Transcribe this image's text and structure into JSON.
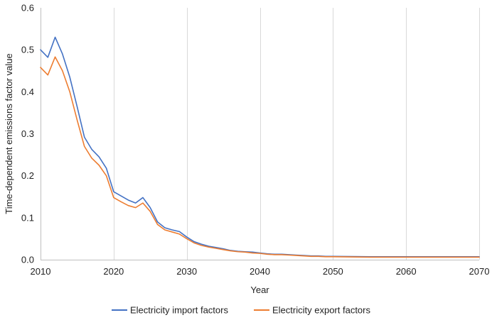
{
  "chart_data": {
    "type": "line",
    "title": "",
    "xlabel": "Year",
    "ylabel": "Time-dependent emissions factor value",
    "xlim": [
      2010,
      2070
    ],
    "ylim": [
      0,
      0.6
    ],
    "x_ticks": [
      2010,
      2020,
      2030,
      2040,
      2050,
      2060,
      2070
    ],
    "x_tick_labels": [
      "2010",
      "2020",
      "2030",
      "2040",
      "2050",
      "2060",
      "2070"
    ],
    "y_ticks": [
      0,
      0.1,
      0.2,
      0.3,
      0.4,
      0.5,
      0.6
    ],
    "y_tick_labels": [
      "0.0",
      "0.1",
      "0.2",
      "0.3",
      "0.4",
      "0.5",
      "0.6"
    ],
    "grid": "vertical",
    "legend_position": "bottom",
    "x": [
      2010,
      2011,
      2012,
      2013,
      2014,
      2015,
      2016,
      2017,
      2018,
      2019,
      2020,
      2021,
      2022,
      2023,
      2024,
      2025,
      2026,
      2027,
      2028,
      2029,
      2030,
      2031,
      2032,
      2033,
      2034,
      2035,
      2036,
      2037,
      2038,
      2039,
      2040,
      2041,
      2042,
      2043,
      2044,
      2045,
      2046,
      2047,
      2048,
      2049,
      2050,
      2055,
      2060,
      2065,
      2070
    ],
    "series": [
      {
        "name": "Electricity import factors",
        "color": "#4472c4",
        "values": [
          0.5,
          0.482,
          0.53,
          0.49,
          0.435,
          0.365,
          0.292,
          0.263,
          0.245,
          0.218,
          0.162,
          0.152,
          0.142,
          0.135,
          0.148,
          0.124,
          0.09,
          0.076,
          0.071,
          0.067,
          0.054,
          0.043,
          0.037,
          0.032,
          0.029,
          0.026,
          0.022,
          0.02,
          0.019,
          0.018,
          0.016,
          0.014,
          0.013,
          0.013,
          0.012,
          0.011,
          0.01,
          0.009,
          0.009,
          0.008,
          0.008,
          0.007,
          0.007,
          0.007,
          0.007
        ]
      },
      {
        "name": "Electricity export factors",
        "color": "#ed7d31",
        "values": [
          0.458,
          0.44,
          0.483,
          0.45,
          0.4,
          0.333,
          0.27,
          0.242,
          0.225,
          0.2,
          0.148,
          0.138,
          0.129,
          0.124,
          0.135,
          0.115,
          0.084,
          0.071,
          0.066,
          0.061,
          0.05,
          0.04,
          0.034,
          0.03,
          0.027,
          0.024,
          0.021,
          0.019,
          0.018,
          0.016,
          0.015,
          0.013,
          0.012,
          0.012,
          0.011,
          0.01,
          0.009,
          0.008,
          0.008,
          0.007,
          0.007,
          0.006,
          0.006,
          0.006,
          0.006
        ]
      }
    ]
  }
}
